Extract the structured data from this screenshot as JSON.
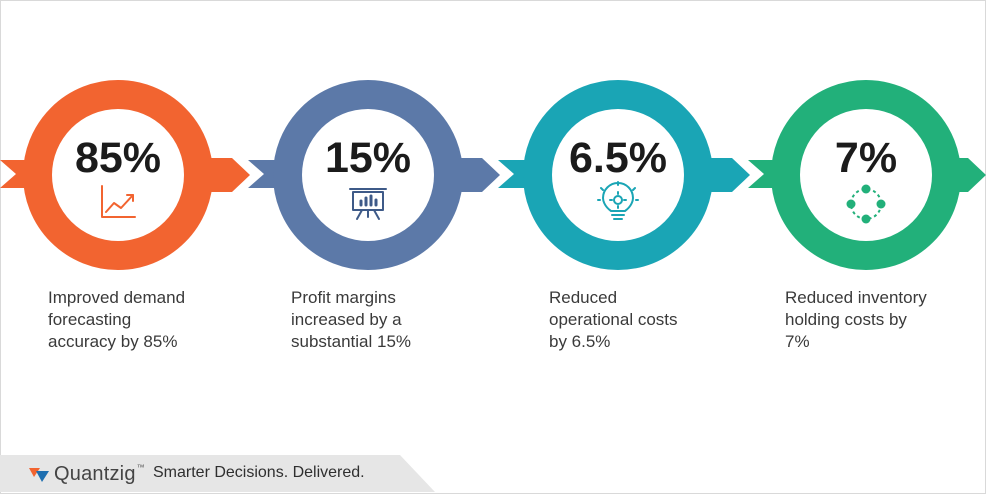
{
  "metrics": [
    {
      "value": "85%",
      "icon": "trend-chart-icon",
      "color": "#f26430",
      "description": [
        "Improved demand",
        "forecasting",
        "accuracy by 85%"
      ]
    },
    {
      "value": "15%",
      "icon": "presentation-board-icon",
      "color": "#5c79a8",
      "description": [
        "Profit margins",
        "increased by a",
        "substantial 15%"
      ]
    },
    {
      "value": "6.5%",
      "icon": "lightbulb-gear-icon",
      "color": "#1aa5b5",
      "description": [
        "Reduced",
        "operational costs",
        "by 6.5%"
      ]
    },
    {
      "value": "7%",
      "icon": "cycle-nodes-icon",
      "color": "#22b07a",
      "description": [
        "Reduced inventory",
        "holding costs by",
        "7%"
      ]
    }
  ],
  "footer": {
    "brand": "Quantzig",
    "trademark": "™",
    "tagline": "Smarter Decisions. Delivered."
  }
}
